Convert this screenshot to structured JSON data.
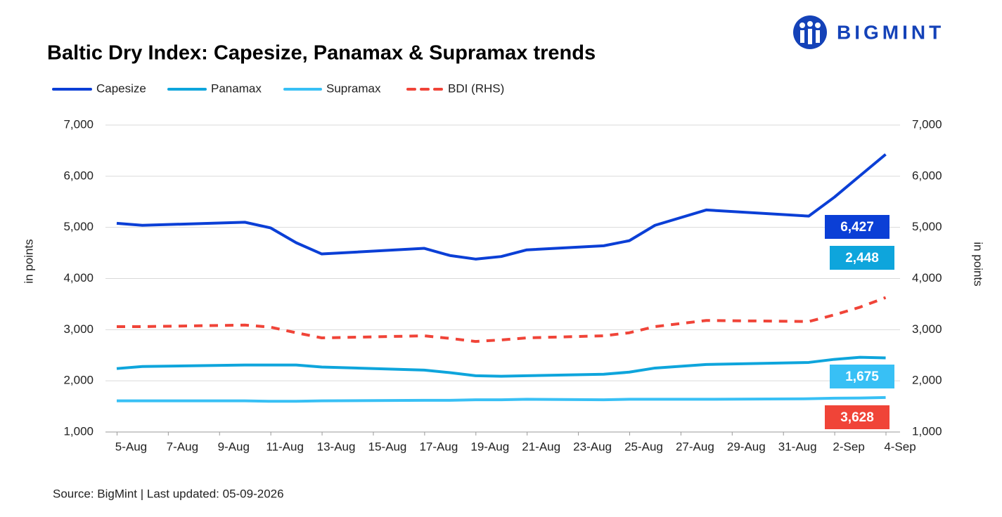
{
  "chart_data": {
    "type": "line",
    "title": "Baltic Dry Index: Capesize, Panamax & Supramax trends",
    "logo": "BIGMINT",
    "source": "Source: BigMint | Last updated: 05-09-2026",
    "y_label": "in points",
    "y2_label": "in points",
    "x": [
      "4-Aug",
      "5-Aug",
      "9-Aug",
      "10-Aug",
      "11-Aug",
      "12-Aug",
      "16-Aug",
      "17-Aug",
      "18-Aug",
      "19-Aug",
      "20-Aug",
      "23-Aug",
      "24-Aug",
      "25-Aug",
      "27-Aug",
      "31-Aug",
      "1-Sep",
      "2-Sep",
      "3-Sep"
    ],
    "xlim": [
      "4-Aug",
      "4-Sep"
    ],
    "xticks": [
      "5-Aug",
      "7-Aug",
      "9-Aug",
      "11-Aug",
      "13-Aug",
      "15-Aug",
      "17-Aug",
      "19-Aug",
      "21-Aug",
      "23-Aug",
      "25-Aug",
      "27-Aug",
      "29-Aug",
      "31-Aug",
      "2-Sep",
      "4-Sep"
    ],
    "ylim": [
      1000,
      7000
    ],
    "yticks": [
      {
        "value": 1000,
        "label": "1,000"
      },
      {
        "value": 2000,
        "label": "2,000"
      },
      {
        "value": 3000,
        "label": "3,000"
      },
      {
        "value": 4000,
        "label": "4,000"
      },
      {
        "value": 5000,
        "label": "5,000"
      },
      {
        "value": 6000,
        "label": "6,000"
      },
      {
        "value": 7000,
        "label": "7,000"
      }
    ],
    "y2lim": [
      1000,
      7000
    ],
    "y2ticks": [
      {
        "value": 1000,
        "label": "1,000"
      },
      {
        "value": 2000,
        "label": "2,000"
      },
      {
        "value": 3000,
        "label": "3,000"
      },
      {
        "value": 4000,
        "label": "4,000"
      },
      {
        "value": 5000,
        "label": "5,000"
      },
      {
        "value": 6000,
        "label": "6,000"
      },
      {
        "value": 7000,
        "label": "7,000"
      }
    ],
    "grid": true,
    "legend": "top",
    "series": [
      {
        "name": "Capesize",
        "color": "#0b3fd6",
        "end_label": "6,427",
        "values": [
          5080,
          5040,
          5100,
          4990,
          4700,
          4480,
          4590,
          4450,
          4380,
          4430,
          4560,
          4640,
          4740,
          5040,
          5340,
          5220,
          5590,
          6010,
          6427
        ]
      },
      {
        "name": "Panamax",
        "color": "#0ea5dc",
        "end_label": "2,448",
        "values": [
          2240,
          2280,
          2310,
          2310,
          2310,
          2270,
          2210,
          2160,
          2100,
          2090,
          2100,
          2130,
          2170,
          2250,
          2320,
          2360,
          2420,
          2460,
          2448
        ]
      },
      {
        "name": "Supramax",
        "color": "#38c0f5",
        "end_label": "1,675",
        "values": [
          1610,
          1610,
          1610,
          1600,
          1600,
          1610,
          1620,
          1620,
          1630,
          1630,
          1640,
          1630,
          1640,
          1640,
          1640,
          1650,
          1660,
          1665,
          1675
        ]
      },
      {
        "name": "BDI (RHS)",
        "color": "#f04438",
        "dashed": true,
        "axis": "y2",
        "end_label": "3,628",
        "values": [
          3060,
          3060,
          3090,
          3050,
          2940,
          2840,
          2880,
          2830,
          2770,
          2800,
          2840,
          2880,
          2940,
          3060,
          3180,
          3160,
          3290,
          3440,
          3628
        ]
      }
    ]
  }
}
